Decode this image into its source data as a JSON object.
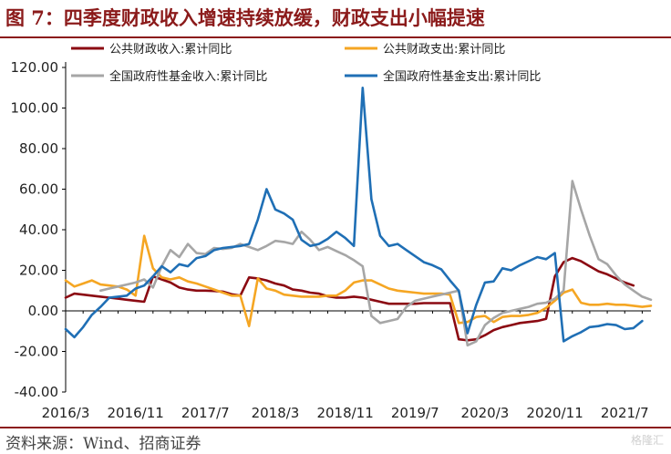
{
  "title": "图 7：四季度财政收入增速持续放缓，财政支出小幅提速",
  "source": "资料来源：Wind、招商证券",
  "watermark": "格隆汇",
  "chart_data": {
    "type": "line",
    "ylim": [
      -40,
      120
    ],
    "yticks": [
      "120.00",
      "100.00",
      "80.00",
      "60.00",
      "40.00",
      "20.00",
      "0.00",
      "-20.00",
      "-40.00"
    ],
    "ytick_values": [
      120,
      100,
      80,
      60,
      40,
      20,
      0,
      -20,
      -40
    ],
    "xtick_labels": [
      "2016/3",
      "2016/11",
      "2017/7",
      "2018/3",
      "2018/11",
      "2019/7",
      "2020/3",
      "2020/11",
      "2021/7"
    ],
    "xtick_index": [
      0,
      8,
      16,
      24,
      32,
      40,
      48,
      56,
      64
    ],
    "x_start": "2016/3",
    "x_end": "2021/12",
    "grid": false,
    "legend": "top",
    "series": [
      {
        "name": "公共财政收入:累计同比",
        "color": "#8B0A12",
        "values": [
          6.5,
          8.5,
          8.0,
          7.5,
          7.0,
          6.5,
          6.0,
          5.5,
          5.0,
          4.5,
          17.0,
          15.5,
          14.0,
          11.5,
          10.5,
          10.0,
          10.0,
          9.8,
          9.5,
          8.2,
          7.5,
          16.5,
          16.0,
          15.0,
          13.5,
          12.5,
          10.5,
          10.0,
          9.0,
          8.5,
          7.2,
          6.5,
          6.5,
          7.0,
          6.5,
          5.5,
          4.5,
          3.5,
          3.5,
          3.5,
          3.5,
          3.8,
          3.8,
          3.8,
          3.8,
          -14.0,
          -14.5,
          -14.0,
          -12.0,
          -9.5,
          -8.0,
          -7.0,
          -6.0,
          -5.5,
          -5.0,
          -3.9,
          17.0,
          24.0,
          26.0,
          24.5,
          22.0,
          19.5,
          18.0,
          16.0,
          14.0,
          12.5
        ],
        "draw_from": 0
      },
      {
        "name": "公共财政支出:累计同比",
        "color": "#F5A623",
        "values": [
          15.0,
          12.0,
          13.5,
          15.0,
          13.0,
          12.5,
          12.0,
          10.5,
          7.5,
          37.0,
          21.0,
          16.5,
          15.5,
          16.5,
          14.5,
          13.5,
          12.0,
          10.5,
          9.0,
          7.5,
          7.5,
          -7.5,
          16.0,
          11.0,
          10.0,
          8.0,
          7.5,
          7.0,
          7.0,
          7.0,
          7.5,
          7.5,
          10.0,
          14.0,
          15.0,
          15.0,
          13.0,
          11.0,
          10.0,
          9.5,
          9.0,
          8.5,
          8.5,
          8.5,
          8.0,
          -6.0,
          -5.5,
          -3.0,
          -2.5,
          -5.5,
          -3.0,
          -2.5,
          -2.5,
          -2.0,
          -1.0,
          1.5,
          5.0,
          9.0,
          10.5,
          4.0,
          3.0,
          3.0,
          3.5,
          3.0,
          3.0,
          2.5,
          2.0,
          2.5
        ],
        "draw_from": 0
      },
      {
        "name": "全国政府性基金收入:累计同比",
        "color": "#A6A6A6",
        "values": [
          10.0,
          11.0,
          12.0,
          13.0,
          14.0,
          15.5,
          11.5,
          22.0,
          30.0,
          26.5,
          33.0,
          28.5,
          28.0,
          31.0,
          30.5,
          31.0,
          33.0,
          31.5,
          30.0,
          32.0,
          34.5,
          34.0,
          33.0,
          39.0,
          35.0,
          30.0,
          31.5,
          29.5,
          27.5,
          25.0,
          22.0,
          -2.5,
          -6.0,
          -5.0,
          -4.0,
          2.0,
          5.0,
          6.0,
          7.0,
          8.0,
          9.0,
          10.0,
          -17.0,
          -15.0,
          -7.0,
          -3.5,
          -1.0,
          0.0,
          1.0,
          2.0,
          3.5,
          4.0,
          6.0,
          10.0,
          64.0,
          50.0,
          37.0,
          25.5,
          23.0,
          17.5,
          13.0,
          10.0,
          7.0,
          5.5
        ],
        "draw_from": 4
      },
      {
        "name": "全国政府性基金支出:累计同比",
        "color": "#1F6FB5",
        "values": [
          -9.0,
          -13.0,
          -8.0,
          -2.0,
          2.0,
          6.5,
          7.0,
          7.5,
          11.0,
          12.5,
          17.0,
          22.0,
          19.0,
          23.0,
          22.0,
          26.0,
          27.0,
          30.0,
          31.0,
          31.5,
          32.0,
          33.0,
          45.0,
          60.0,
          50.0,
          48.0,
          45.0,
          35.0,
          32.0,
          33.0,
          35.5,
          39.0,
          36.0,
          32.0,
          110.0,
          55.0,
          37.0,
          32.0,
          33.0,
          30.0,
          27.0,
          24.0,
          22.5,
          20.5,
          15.0,
          10.0,
          -11.0,
          3.0,
          14.0,
          14.5,
          21.0,
          20.0,
          22.5,
          24.5,
          26.5,
          25.5,
          28.5,
          -15.0,
          -12.5,
          -10.5,
          -8.0,
          -7.5,
          -6.5,
          -7.0,
          -9.0,
          -8.5,
          -5.0
        ],
        "draw_from": 0
      }
    ]
  }
}
